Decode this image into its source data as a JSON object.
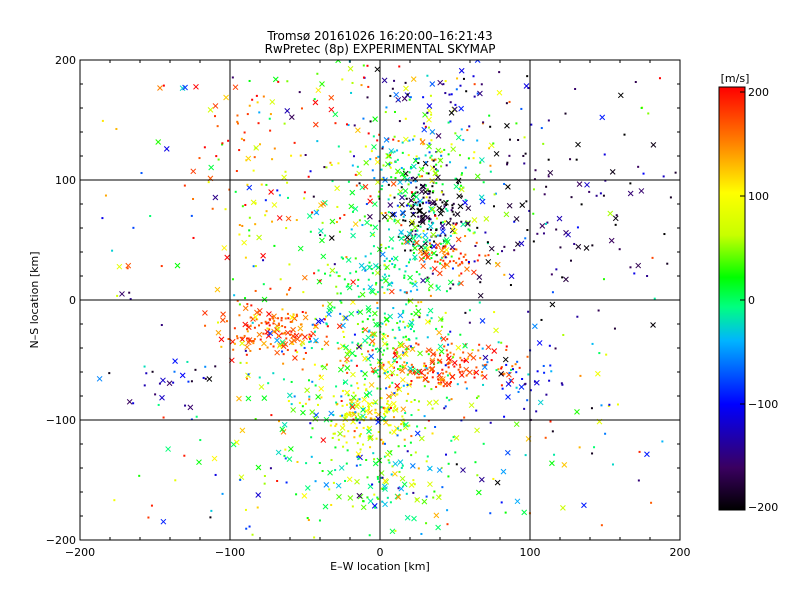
{
  "chart_data": {
    "type": "scatter",
    "title": "Tromsø 20161026 16:20:00–16:21:43",
    "subtitle": "RwPretec (8p) EXPERIMENTAL SKYMAP",
    "xlabel": "E–W location [km]",
    "ylabel": "N–S location [km]",
    "xlim": [
      -200,
      200
    ],
    "ylim": [
      -200,
      200
    ],
    "x_ticks": [
      "−200",
      "−100",
      "0",
      "100",
      "200"
    ],
    "y_ticks": [
      "200",
      "100",
      "0",
      "−100",
      "−200"
    ],
    "grid": true,
    "colorbar": {
      "title": "[m/s]",
      "range": [
        -200,
        200
      ],
      "ticks": [
        "200",
        "100",
        "0",
        "−100",
        "−200"
      ],
      "colormap": [
        "#000000",
        "#3a0060",
        "#0000ff",
        "#00b4ff",
        "#00ff80",
        "#00ff00",
        "#c8ff00",
        "#ffff00",
        "#ff8000",
        "#ff0000"
      ]
    },
    "clusters": [
      {
        "x": 30,
        "y": 75,
        "sx": 12,
        "sy": 15,
        "n": 130,
        "v": -190,
        "vs": 30
      },
      {
        "x": 30,
        "y": 110,
        "sx": 22,
        "sy": 25,
        "n": 160,
        "v": 20,
        "vs": 60
      },
      {
        "x": 35,
        "y": 55,
        "sx": 15,
        "sy": 12,
        "n": 60,
        "v": 10,
        "vs": 60
      },
      {
        "x": 45,
        "y": 35,
        "sx": 15,
        "sy": 8,
        "n": 60,
        "v": 170,
        "vs": 20
      },
      {
        "x": 5,
        "y": 10,
        "sx": 20,
        "sy": 40,
        "n": 230,
        "v": 0,
        "vs": 25
      },
      {
        "x": 40,
        "y": -55,
        "sx": 25,
        "sy": 10,
        "n": 160,
        "v": 175,
        "vs": 25
      },
      {
        "x": -70,
        "y": -25,
        "sx": 20,
        "sy": 12,
        "n": 150,
        "v": 165,
        "vs": 20
      },
      {
        "x": -5,
        "y": -95,
        "sx": 15,
        "sy": 12,
        "n": 110,
        "v": 95,
        "vs": 25
      },
      {
        "x": -5,
        "y": -150,
        "sx": 30,
        "sy": 25,
        "n": 150,
        "v": 15,
        "vs": 50
      },
      {
        "x": 0,
        "y": -55,
        "sx": 35,
        "sy": 30,
        "n": 240,
        "v": 30,
        "vs": 60
      },
      {
        "x": -20,
        "y": 120,
        "sx": 50,
        "sy": 50,
        "n": 150,
        "v": 80,
        "vs": 90
      },
      {
        "x": 100,
        "y": 70,
        "sx": 45,
        "sy": 45,
        "n": 140,
        "v": -170,
        "vs": 40
      },
      {
        "x": 95,
        "y": -60,
        "sx": 15,
        "sy": 20,
        "n": 40,
        "v": -100,
        "vs": 40
      },
      {
        "x": -145,
        "y": -70,
        "sx": 20,
        "sy": 15,
        "n": 25,
        "v": -130,
        "vs": 40
      },
      {
        "x": -110,
        "y": 140,
        "sx": 25,
        "sy": 30,
        "n": 30,
        "v": 170,
        "vs": 40
      },
      {
        "x": -70,
        "y": 50,
        "sx": 30,
        "sy": 40,
        "n": 60,
        "v": 90,
        "vs": 70
      },
      {
        "x": 60,
        "y": -140,
        "sx": 40,
        "sy": 30,
        "n": 30,
        "v": -40,
        "vs": 80
      },
      {
        "x": 40,
        "y": 170,
        "sx": 40,
        "sy": 20,
        "n": 60,
        "v": -150,
        "vs": 70
      },
      {
        "x": -40,
        "y": -100,
        "sx": 40,
        "sy": 40,
        "n": 60,
        "v": 80,
        "vs": 60
      }
    ]
  }
}
